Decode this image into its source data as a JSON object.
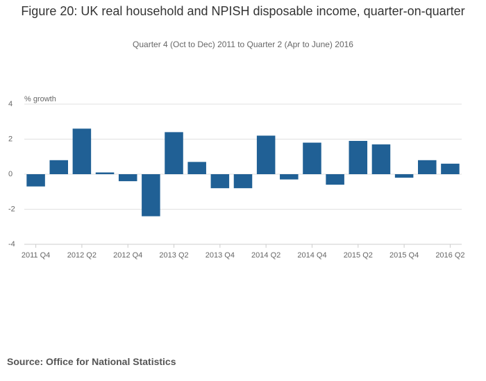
{
  "chart_data": {
    "type": "bar",
    "title": "Figure 20: UK real household and NPISH disposable income, quarter-on-quarter",
    "subtitle": "Quarter 4 (Oct to Dec) 2011 to Quarter 2 (Apr to June) 2016",
    "y_label": "% growth",
    "categories": [
      "2011 Q4",
      null,
      "2012 Q2",
      null,
      "2012 Q4",
      null,
      "2013 Q2",
      null,
      "2013 Q4",
      null,
      "2014 Q2",
      null,
      "2014 Q4",
      null,
      "2015 Q2",
      null,
      "2015 Q4",
      null,
      "2016 Q2"
    ],
    "values": [
      -0.7,
      0.8,
      2.6,
      0.1,
      -0.4,
      -2.4,
      2.4,
      0.7,
      -0.8,
      -0.8,
      2.2,
      -0.3,
      1.8,
      -0.6,
      1.9,
      1.7,
      -0.2,
      0.8,
      0.6
    ],
    "color": "#206095",
    "ylim": [
      -4,
      4
    ],
    "yticks": [
      -4,
      -2,
      0,
      2,
      4
    ],
    "grid": true
  },
  "source": "Source: Office for National Statistics"
}
